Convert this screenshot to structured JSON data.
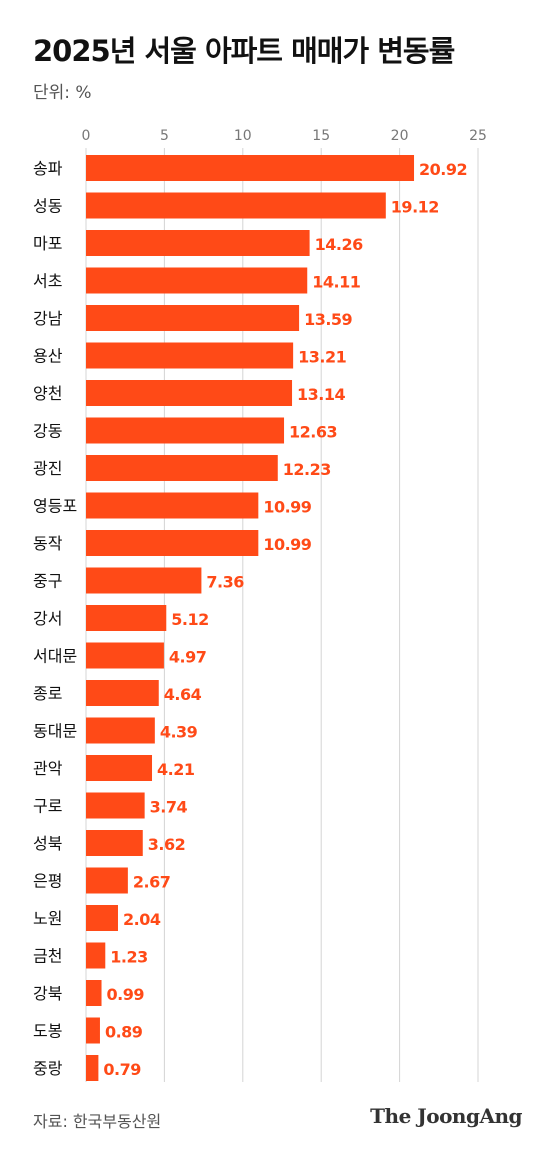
{
  "title": "2025년 서울 아파트 매매가 변동률",
  "unit_label": "단위: %",
  "source": "자료: 한국부동산원",
  "publisher": "The JoongAng",
  "chart_data": {
    "type": "bar",
    "orientation": "horizontal",
    "categories": [
      "송파",
      "성동",
      "마포",
      "서초",
      "강남",
      "용산",
      "양천",
      "강동",
      "광진",
      "영등포",
      "동작",
      "중구",
      "강서",
      "서대문",
      "종로",
      "동대문",
      "관악",
      "구로",
      "성북",
      "은평",
      "노원",
      "금천",
      "강북",
      "도봉",
      "중랑"
    ],
    "values": [
      20.92,
      19.12,
      14.26,
      14.11,
      13.59,
      13.21,
      13.14,
      12.63,
      12.23,
      10.99,
      10.99,
      7.36,
      5.12,
      4.97,
      4.64,
      4.39,
      4.21,
      3.74,
      3.62,
      2.67,
      2.04,
      1.23,
      0.99,
      0.89,
      0.79
    ],
    "value_labels": [
      "20.92",
      "19.12",
      "14.26",
      "14.11",
      "13.59",
      "13.21",
      "13.14",
      "12.63",
      "12.23",
      "10.99",
      "10.99",
      "7.36",
      "5.12",
      "4.97",
      "4.64",
      "4.39",
      "4.21",
      "3.74",
      "3.62",
      "2.67",
      "2.04",
      "1.23",
      "0.99",
      "0.89",
      "0.79"
    ],
    "xlim": [
      0,
      25
    ],
    "xticks": [
      0,
      5,
      10,
      15,
      20,
      25
    ],
    "xlabel": "",
    "ylabel": "",
    "grid": true,
    "bar_color": "#ff4a17",
    "label_color": "#ff4a17"
  }
}
